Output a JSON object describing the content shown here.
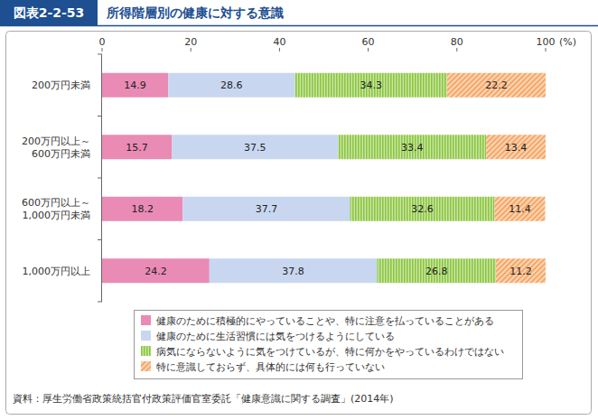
{
  "chart_data": {
    "type": "bar",
    "orientation": "horizontal",
    "stacked": true,
    "data_labels": true,
    "grid": false,
    "figure_label": "図表2-2-53",
    "title": "所得階層別の健康に対する意識",
    "xlabel": "(%)",
    "source": "資料：厚生労働省政策統括官付政策評価官室委託「健康意識に関する調査」(2014年)",
    "xlim": [
      0,
      100
    ],
    "xticks": [
      0,
      20,
      40,
      60,
      80,
      100
    ],
    "categories": [
      "200万円未満",
      "200万円以上～\n600万円未満",
      "600万円以上～\n1,000万円未満",
      "1,000万円以上"
    ],
    "series": [
      {
        "name": "健康のために積極的にやっていることや、特に注意を払っていることがある",
        "color": "#e98bb5",
        "values": [
          14.9,
          15.7,
          18.2,
          24.2
        ]
      },
      {
        "name": "健康のために生活習慣には気をつけるようにしている",
        "color": "#c9d6f0",
        "values": [
          28.6,
          37.5,
          37.7,
          37.8
        ]
      },
      {
        "name": "病気にならないように気をつけているが、特に何かをやっているわけではない",
        "color": "#8cc63f",
        "values": [
          34.3,
          33.4,
          32.6,
          26.8
        ]
      },
      {
        "name": "特に意識しておらず、具体的には何も行っていない",
        "color": "#f5a25d",
        "values": [
          22.2,
          13.4,
          11.4,
          11.2
        ]
      }
    ]
  }
}
